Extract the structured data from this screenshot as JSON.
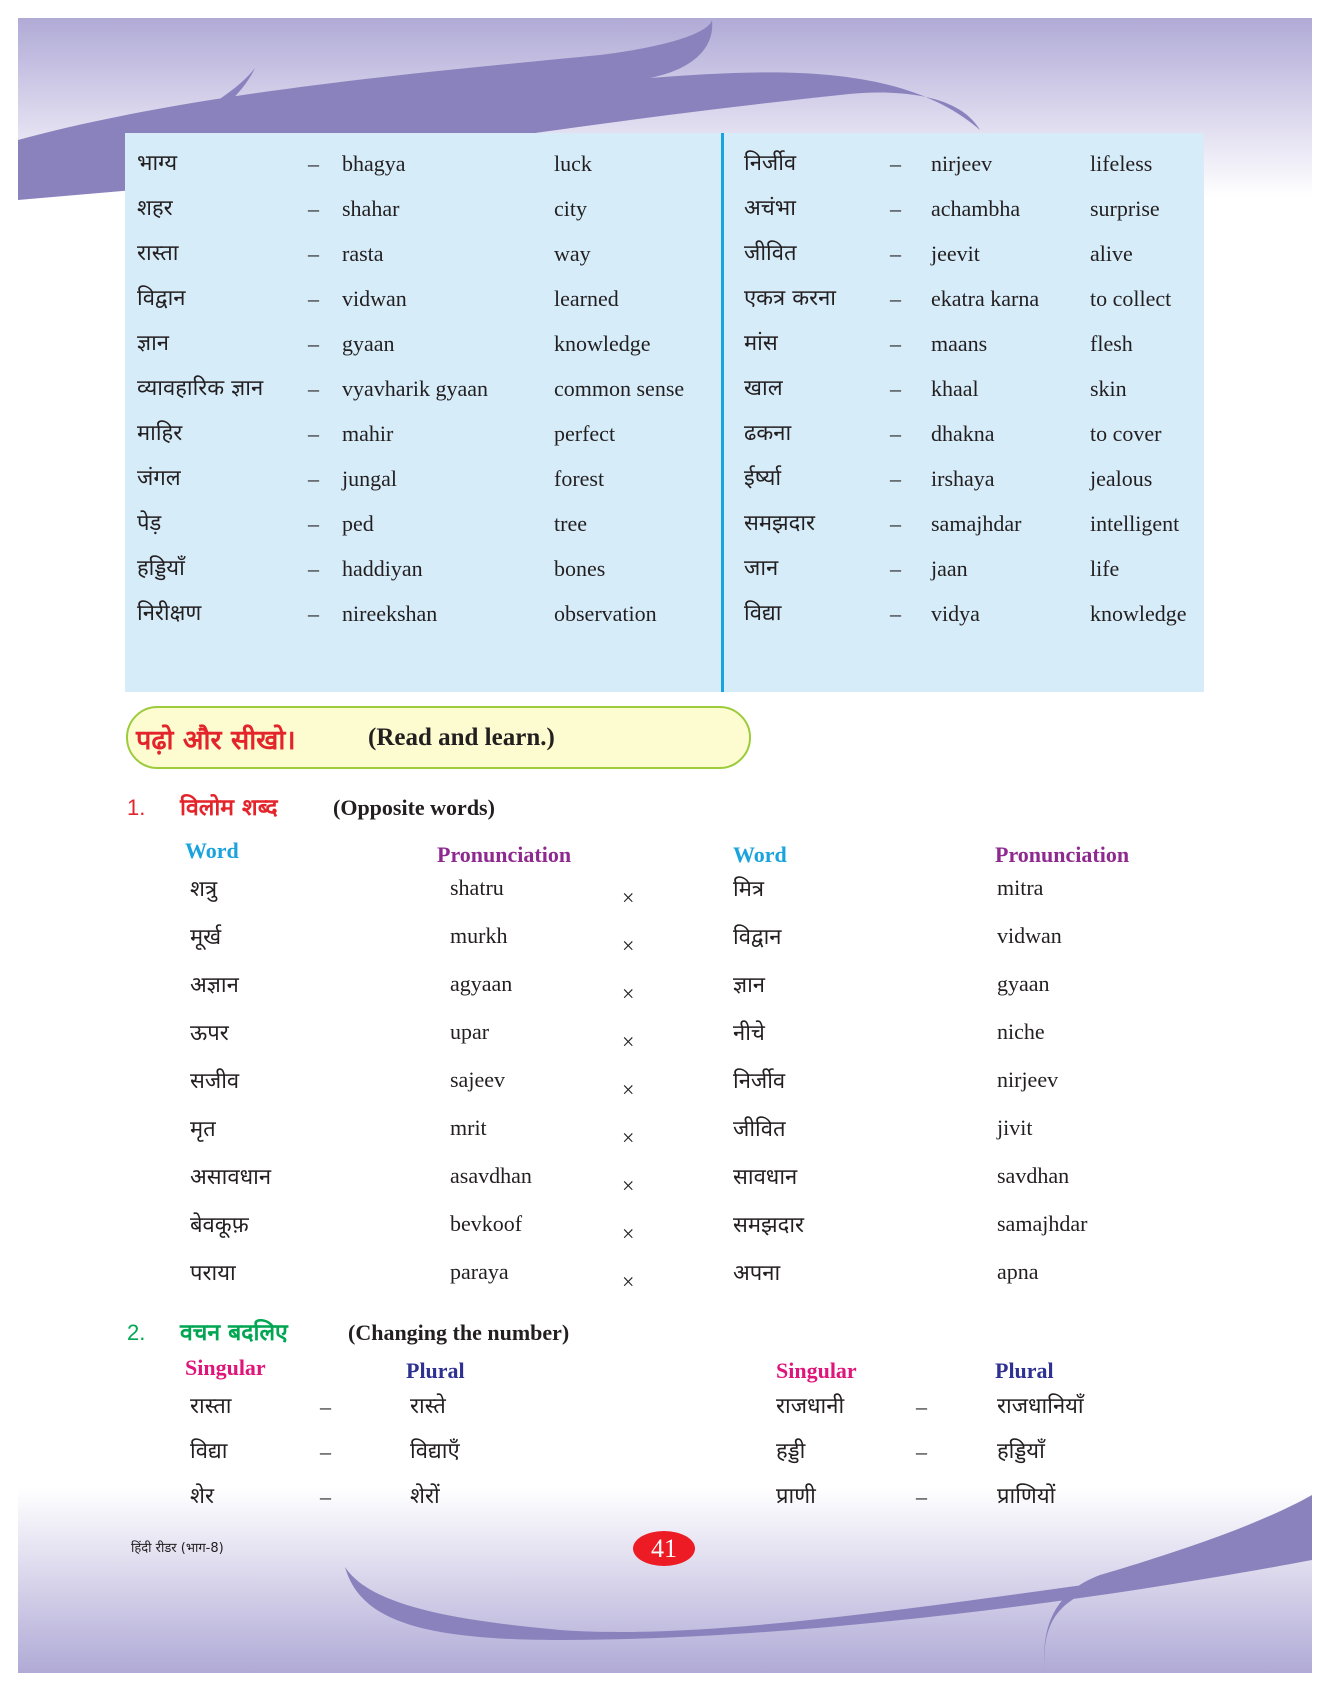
{
  "colors": {
    "accent_red": "#e3252b",
    "word_header": "#1aa3dc",
    "pronunciation_header": "#8e2a8f",
    "singular_header": "#e0157a",
    "plural_header": "#2e3192",
    "section2_green": "#00a651",
    "vocab_bg": "#d6ecf9",
    "swoosh": "#8a82bd"
  },
  "vocab": {
    "left": [
      [
        "भाग्य",
        "–",
        "bhagya",
        "luck"
      ],
      [
        "शहर",
        "–",
        "shahar",
        "city"
      ],
      [
        "रास्ता",
        "–",
        "rasta",
        "way"
      ],
      [
        "विद्वान",
        "–",
        "vidwan",
        "learned"
      ],
      [
        "ज्ञान",
        "–",
        "gyaan",
        "knowledge"
      ],
      [
        "व्यावहारिक ज्ञान",
        "–",
        "vyavharik gyaan",
        "common sense"
      ],
      [
        "माहिर",
        "–",
        "mahir",
        "perfect"
      ],
      [
        "जंगल",
        "–",
        "jungal",
        "forest"
      ],
      [
        "पेड़",
        "–",
        "ped",
        "tree"
      ],
      [
        "हड्डियाँ",
        "–",
        "haddiyan",
        "bones"
      ],
      [
        "निरीक्षण",
        "–",
        "nireekshan",
        "observation"
      ]
    ],
    "right": [
      [
        "निर्जीव",
        "–",
        "nirjeev",
        "lifeless"
      ],
      [
        "अचंभा",
        "–",
        "achambha",
        "surprise"
      ],
      [
        "जीवित",
        "–",
        "jeevit",
        "alive"
      ],
      [
        "एकत्र करना",
        "–",
        "ekatra karna",
        "to collect"
      ],
      [
        "मांस",
        "–",
        "maans",
        "flesh"
      ],
      [
        "खाल",
        "–",
        "khaal",
        "skin"
      ],
      [
        "ढकना",
        "–",
        "dhakna",
        "to cover"
      ],
      [
        "ईर्ष्या",
        "–",
        "irshaya",
        "jealous"
      ],
      [
        "समझदार",
        "–",
        "samajhdar",
        "intelligent"
      ],
      [
        "जान",
        "–",
        "jaan",
        "life"
      ],
      [
        "विद्या",
        "–",
        "vidya",
        "knowledge"
      ]
    ]
  },
  "banner": {
    "hindi": "पढ़ो और सीखो।",
    "english": "(Read and learn.)"
  },
  "section1": {
    "number": "1.",
    "hindi": "विलोम शब्द",
    "english": "(Opposite words)",
    "headers": {
      "word": "Word",
      "pronunciation": "Pronunciation",
      "word2": "Word",
      "pronunciation2": "Pronunciation"
    },
    "rows": [
      [
        "शत्रु",
        "shatru",
        "×",
        "मित्र",
        "mitra"
      ],
      [
        "मूर्ख",
        "murkh",
        "×",
        "विद्वान",
        "vidwan"
      ],
      [
        "अज्ञान",
        "agyaan",
        "×",
        "ज्ञान",
        "gyaan"
      ],
      [
        "ऊपर",
        "upar",
        "×",
        "नीचे",
        "niche"
      ],
      [
        "सजीव",
        "sajeev",
        "×",
        "निर्जीव",
        "nirjeev"
      ],
      [
        "मृत",
        "mrit",
        "×",
        "जीवित",
        "jivit"
      ],
      [
        "असावधान",
        "asavdhan",
        "×",
        "सावधान",
        "savdhan"
      ],
      [
        "बेवकूफ़",
        "bevkoof",
        "×",
        "समझदार",
        "samajhdar"
      ],
      [
        "पराया",
        "paraya",
        "×",
        "अपना",
        "apna"
      ]
    ]
  },
  "section2": {
    "number": "2.",
    "hindi": "वचन बदलिए",
    "english": "(Changing the number)",
    "headers": {
      "singular": "Singular",
      "plural": "Plural",
      "singular2": "Singular",
      "plural2": "Plural"
    },
    "rows": [
      [
        "रास्ता",
        "–",
        "रास्ते",
        "राजधानी",
        "–",
        "राजधानियाँ"
      ],
      [
        "विद्या",
        "–",
        "विद्याएँ",
        "हड्डी",
        "–",
        "हड्डियाँ"
      ],
      [
        "शेर",
        "–",
        "शेरों",
        "प्राणी",
        "–",
        "प्राणियों"
      ]
    ]
  },
  "footer": {
    "book": "हिंदी रीडर (भाग-8)",
    "page_number": "41"
  }
}
